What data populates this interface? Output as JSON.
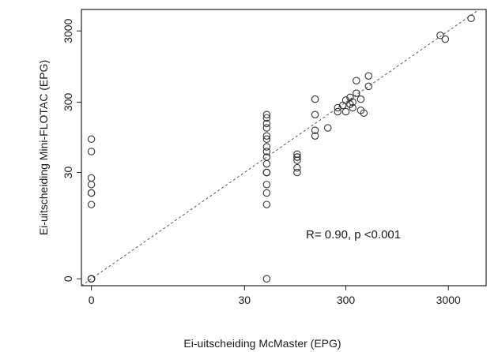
{
  "chart_data": {
    "type": "scatter",
    "title": "",
    "xlabel": "Ei-uitscheiding McMaster (EPG)",
    "ylabel": "Ei-uitscheiding Mini-FLOTAC (EPG)",
    "x_scale": "log(x+1)",
    "y_scale": "log(y+1)",
    "xlim": [
      -0.2,
      7000
    ],
    "ylim": [
      -0.2,
      6000
    ],
    "x_ticks": [
      0,
      30,
      300,
      3000
    ],
    "y_ticks": [
      0,
      30,
      300,
      3000
    ],
    "x_tick_labels": [
      "0",
      "30",
      "300",
      "3000"
    ],
    "y_tick_labels": [
      "0",
      "30",
      "300",
      "3000"
    ],
    "grid": false,
    "legend": "none",
    "reference_line": {
      "style": "dashed",
      "slope": 1,
      "intercept": 0
    },
    "annotation": "R= 0.90, p <0.001",
    "colors": {
      "points": "#333333",
      "line": "#555555",
      "frame": "#222222"
    },
    "series": [
      {
        "x": [
          0,
          0,
          0,
          0,
          0,
          0,
          0,
          0,
          0,
          0,
          0,
          0,
          50,
          50,
          50,
          50,
          50,
          50,
          50,
          50,
          50,
          50,
          50,
          50,
          50,
          50,
          50,
          50,
          50,
          100,
          100,
          100,
          100,
          100,
          100,
          150,
          150,
          150,
          150,
          200,
          250,
          250,
          280,
          300,
          300,
          330,
          330,
          350,
          350,
          380,
          380,
          420,
          420,
          450,
          500,
          500,
          2500,
          2800,
          5000
        ],
        "y": [
          0,
          0,
          0,
          0,
          0,
          10,
          15,
          15,
          20,
          25,
          60,
          90,
          0,
          10,
          15,
          20,
          30,
          30,
          30,
          40,
          50,
          60,
          70,
          90,
          100,
          130,
          150,
          180,
          200,
          30,
          35,
          45,
          50,
          50,
          55,
          100,
          120,
          330,
          200,
          130,
          220,
          250,
          270,
          220,
          320,
          280,
          350,
          250,
          300,
          400,
          600,
          230,
          330,
          210,
          500,
          700,
          2600,
          2300,
          4500
        ]
      }
    ]
  }
}
